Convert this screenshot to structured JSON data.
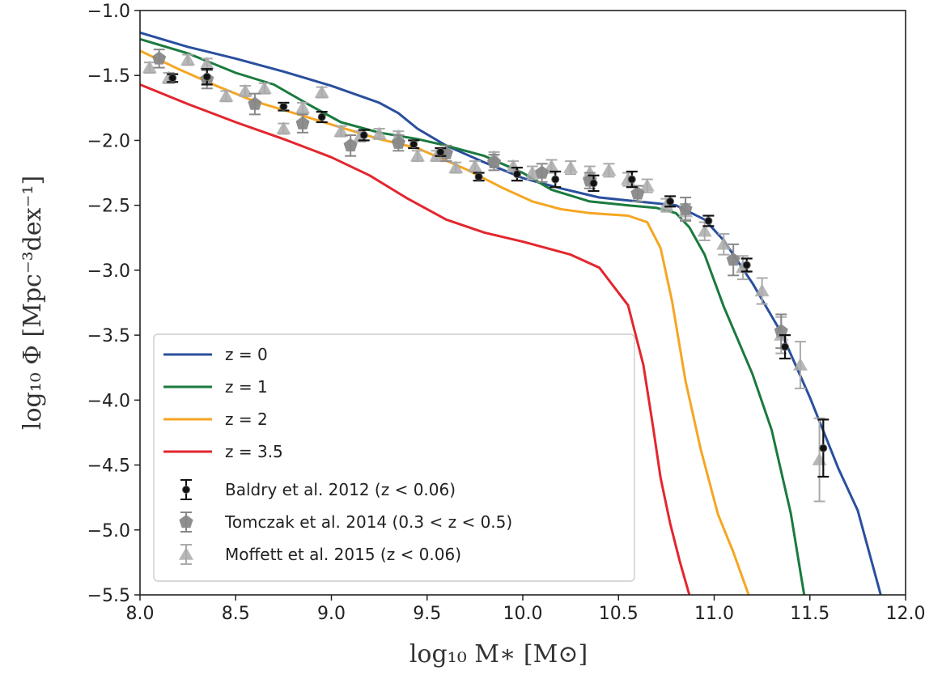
{
  "chart_data": {
    "type": "line",
    "xlabel": "log₁₀ M∗ [M⊙]",
    "ylabel": "log₁₀ Φ [Mpc⁻³dex⁻¹]",
    "xlim": [
      8.0,
      12.0
    ],
    "ylim": [
      -5.5,
      -1.0
    ],
    "xticks": [
      "8.0",
      "8.5",
      "9.0",
      "9.5",
      "10.0",
      "10.5",
      "11.0",
      "11.5",
      "12.0"
    ],
    "yticks": [
      "−1.0",
      "−1.5",
      "−2.0",
      "−2.5",
      "−3.0",
      "−3.5",
      "−4.0",
      "−4.5",
      "−5.0",
      "−5.5"
    ],
    "grid": false,
    "legend_position": "lower-left",
    "series": [
      {
        "name": "z = 0",
        "color": "#2a4f9e",
        "x": [
          8.0,
          8.25,
          8.5,
          8.75,
          9.0,
          9.25,
          9.35,
          9.45,
          9.6,
          9.8,
          10.0,
          10.2,
          10.4,
          10.6,
          10.8,
          10.95,
          11.05,
          11.2,
          11.35,
          11.5,
          11.65,
          11.75,
          11.87
        ],
        "y": [
          -1.17,
          -1.28,
          -1.37,
          -1.47,
          -1.58,
          -1.71,
          -1.79,
          -1.91,
          -2.04,
          -2.17,
          -2.29,
          -2.37,
          -2.44,
          -2.47,
          -2.5,
          -2.61,
          -2.77,
          -3.1,
          -3.48,
          -3.98,
          -4.53,
          -4.85,
          -5.5
        ]
      },
      {
        "name": "z = 1",
        "color": "#1a7a3e",
        "x": [
          8.0,
          8.25,
          8.5,
          8.7,
          8.9,
          9.05,
          9.25,
          9.45,
          9.6,
          9.8,
          10.0,
          10.15,
          10.35,
          10.55,
          10.7,
          10.8,
          10.87,
          10.95,
          11.05,
          11.2,
          11.3,
          11.4,
          11.47
        ],
        "y": [
          -1.22,
          -1.33,
          -1.48,
          -1.57,
          -1.74,
          -1.86,
          -1.94,
          -1.99,
          -2.04,
          -2.12,
          -2.25,
          -2.38,
          -2.47,
          -2.5,
          -2.52,
          -2.56,
          -2.67,
          -2.88,
          -3.28,
          -3.8,
          -4.23,
          -4.87,
          -5.5
        ]
      },
      {
        "name": "z = 2",
        "color": "#f5a623",
        "x": [
          8.0,
          8.2,
          8.4,
          8.6,
          8.85,
          9.05,
          9.25,
          9.45,
          9.7,
          9.9,
          10.05,
          10.2,
          10.35,
          10.55,
          10.65,
          10.72,
          10.78,
          10.85,
          10.93,
          11.02,
          11.1,
          11.18
        ],
        "y": [
          -1.31,
          -1.45,
          -1.58,
          -1.7,
          -1.81,
          -1.9,
          -1.99,
          -2.06,
          -2.22,
          -2.37,
          -2.47,
          -2.53,
          -2.56,
          -2.58,
          -2.63,
          -2.83,
          -3.24,
          -3.85,
          -4.38,
          -4.88,
          -5.17,
          -5.5
        ]
      },
      {
        "name": "z = 3.5",
        "color": "#e3262e",
        "x": [
          8.0,
          8.25,
          8.5,
          8.75,
          9.0,
          9.2,
          9.4,
          9.6,
          9.8,
          10.0,
          10.25,
          10.4,
          10.55,
          10.63,
          10.68,
          10.72,
          10.77,
          10.82,
          10.87
        ],
        "y": [
          -1.57,
          -1.72,
          -1.86,
          -1.99,
          -2.13,
          -2.27,
          -2.45,
          -2.61,
          -2.71,
          -2.78,
          -2.88,
          -2.98,
          -3.27,
          -3.73,
          -4.2,
          -4.6,
          -4.95,
          -5.24,
          -5.5
        ]
      }
    ],
    "observations": [
      {
        "name": "Baldry et al. 2012 (z < 0.06)",
        "color": "#111111",
        "marker": "circle",
        "x": [
          8.17,
          8.35,
          8.75,
          8.95,
          9.17,
          9.43,
          9.57,
          9.77,
          9.97,
          10.17,
          10.37,
          10.57,
          10.77,
          10.97,
          11.17,
          11.37,
          11.57
        ],
        "y": [
          -1.52,
          -1.51,
          -1.74,
          -1.82,
          -1.96,
          -2.03,
          -2.09,
          -2.28,
          -2.26,
          -2.3,
          -2.33,
          -2.3,
          -2.47,
          -2.62,
          -2.96,
          -3.59,
          -4.37
        ],
        "err": [
          0.03,
          0.06,
          0.03,
          0.04,
          0.04,
          0.03,
          0.03,
          0.03,
          0.05,
          0.06,
          0.06,
          0.06,
          0.04,
          0.04,
          0.05,
          0.09,
          0.22
        ]
      },
      {
        "name": "Tomczak et al. 2014 (0.3 < z < 0.5)",
        "color": "#888888",
        "marker": "pentagon",
        "x": [
          8.1,
          8.35,
          8.6,
          8.85,
          9.1,
          9.35,
          9.6,
          9.85,
          10.1,
          10.35,
          10.6,
          10.85,
          11.1,
          11.35
        ],
        "y": [
          -1.37,
          -1.53,
          -1.72,
          -1.87,
          -2.04,
          -2.02,
          -2.1,
          -2.17,
          -2.25,
          -2.31,
          -2.41,
          -2.53,
          -2.92,
          -3.47
        ],
        "err": [
          0.07,
          0.07,
          0.08,
          0.07,
          0.08,
          0.06,
          0.06,
          0.06,
          0.07,
          0.06,
          0.06,
          0.09,
          0.12,
          0.13
        ]
      },
      {
        "name": "Moffett et al. 2015 (z < 0.06)",
        "color": "#aaaaaa",
        "marker": "triangle",
        "x": [
          8.05,
          8.15,
          8.25,
          8.35,
          8.45,
          8.55,
          8.65,
          8.75,
          8.85,
          8.95,
          9.05,
          9.15,
          9.25,
          9.35,
          9.45,
          9.55,
          9.65,
          9.75,
          9.85,
          9.95,
          10.05,
          10.15,
          10.25,
          10.35,
          10.45,
          10.55,
          10.65,
          10.75,
          10.85,
          10.95,
          11.05,
          11.15,
          11.25,
          11.35,
          11.45,
          11.55
        ],
        "y": [
          -1.44,
          -1.52,
          -1.38,
          -1.41,
          -1.66,
          -1.62,
          -1.6,
          -1.91,
          -1.75,
          -1.63,
          -1.93,
          -1.97,
          -1.95,
          -1.97,
          -2.12,
          -2.12,
          -2.21,
          -2.2,
          -2.13,
          -2.2,
          -2.25,
          -2.2,
          -2.21,
          -2.25,
          -2.23,
          -2.3,
          -2.35,
          -2.5,
          -2.55,
          -2.7,
          -2.8,
          -2.98,
          -3.16,
          -3.5,
          -3.73,
          -4.46
        ],
        "err": [
          0.04,
          0.04,
          0.04,
          0.04,
          0.04,
          0.04,
          0.04,
          0.04,
          0.04,
          0.04,
          0.04,
          0.04,
          0.04,
          0.04,
          0.04,
          0.04,
          0.04,
          0.04,
          0.04,
          0.04,
          0.05,
          0.05,
          0.05,
          0.05,
          0.05,
          0.05,
          0.05,
          0.05,
          0.06,
          0.07,
          0.08,
          0.09,
          0.1,
          0.14,
          0.18,
          0.32
        ]
      }
    ]
  }
}
